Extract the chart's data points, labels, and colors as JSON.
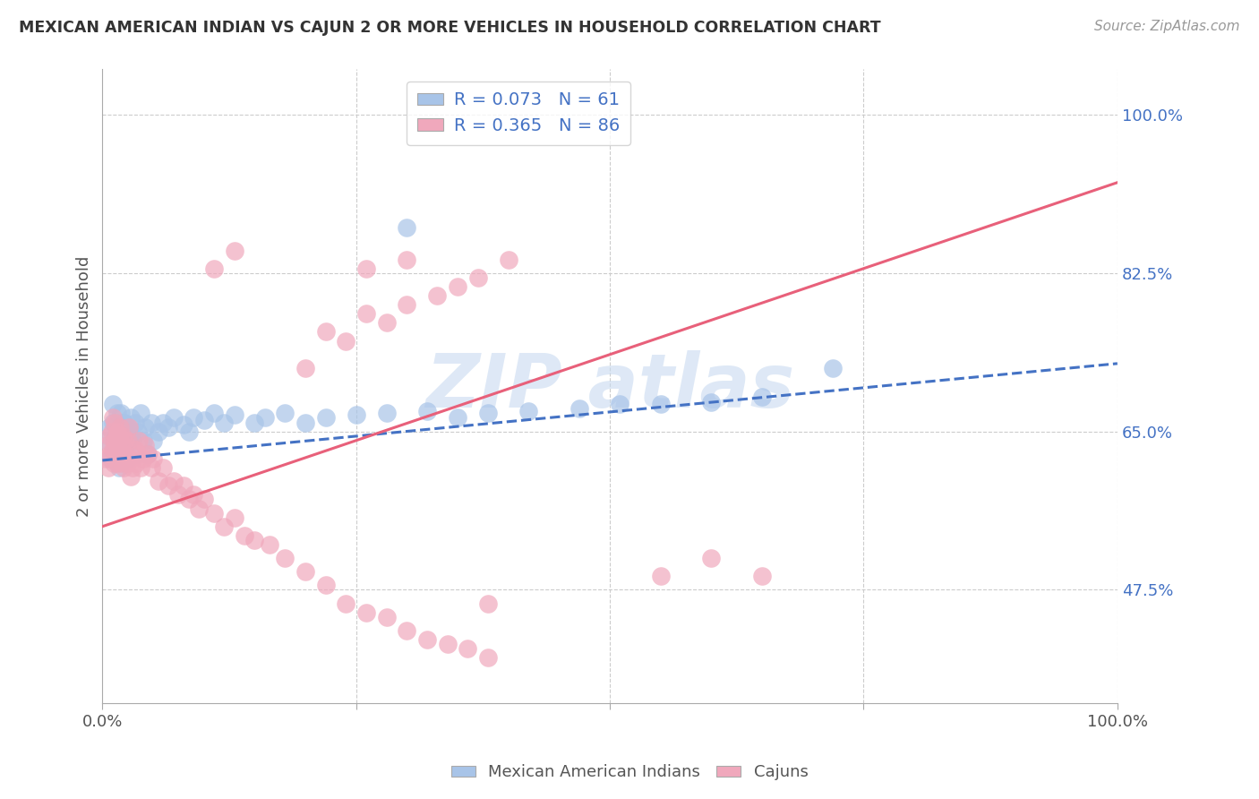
{
  "title": "MEXICAN AMERICAN INDIAN VS CAJUN 2 OR MORE VEHICLES IN HOUSEHOLD CORRELATION CHART",
  "source": "Source: ZipAtlas.com",
  "ylabel": "2 or more Vehicles in Household",
  "legend_label1": "Mexican American Indians",
  "legend_label2": "Cajuns",
  "R1": 0.073,
  "N1": 61,
  "R2": 0.365,
  "N2": 86,
  "color1": "#a8c4e8",
  "color2": "#f0a8bc",
  "line_color1": "#4472c4",
  "line_color2": "#e8607a",
  "watermark_color": "#c8daf0",
  "xlim": [
    0.0,
    1.0
  ],
  "ylim": [
    0.35,
    1.05
  ],
  "blue_line_start_y": 0.618,
  "blue_line_end_y": 0.725,
  "pink_line_start_y": 0.545,
  "pink_line_end_y": 0.925,
  "blue_x": [
    0.005,
    0.007,
    0.008,
    0.01,
    0.01,
    0.012,
    0.013,
    0.014,
    0.015,
    0.016,
    0.017,
    0.018,
    0.018,
    0.02,
    0.02,
    0.022,
    0.022,
    0.024,
    0.025,
    0.025,
    0.028,
    0.028,
    0.03,
    0.032,
    0.033,
    0.035,
    0.038,
    0.04,
    0.042,
    0.045,
    0.048,
    0.05,
    0.055,
    0.06,
    0.065,
    0.07,
    0.08,
    0.085,
    0.09,
    0.1,
    0.11,
    0.12,
    0.13,
    0.15,
    0.16,
    0.18,
    0.2,
    0.22,
    0.25,
    0.28,
    0.32,
    0.35,
    0.38,
    0.42,
    0.47,
    0.51,
    0.55,
    0.6,
    0.65,
    0.72,
    0.3
  ],
  "blue_y": [
    0.64,
    0.655,
    0.62,
    0.66,
    0.68,
    0.625,
    0.645,
    0.63,
    0.67,
    0.61,
    0.655,
    0.64,
    0.67,
    0.625,
    0.66,
    0.635,
    0.66,
    0.65,
    0.62,
    0.655,
    0.645,
    0.665,
    0.64,
    0.66,
    0.625,
    0.65,
    0.67,
    0.64,
    0.655,
    0.625,
    0.66,
    0.64,
    0.65,
    0.66,
    0.655,
    0.665,
    0.658,
    0.65,
    0.665,
    0.662,
    0.67,
    0.66,
    0.668,
    0.66,
    0.665,
    0.67,
    0.66,
    0.665,
    0.668,
    0.67,
    0.672,
    0.665,
    0.67,
    0.672,
    0.675,
    0.68,
    0.68,
    0.682,
    0.688,
    0.72,
    0.875
  ],
  "pink_x": [
    0.003,
    0.005,
    0.006,
    0.007,
    0.008,
    0.009,
    0.01,
    0.01,
    0.011,
    0.012,
    0.012,
    0.013,
    0.014,
    0.015,
    0.015,
    0.016,
    0.017,
    0.017,
    0.018,
    0.019,
    0.02,
    0.02,
    0.021,
    0.022,
    0.023,
    0.024,
    0.025,
    0.026,
    0.027,
    0.028,
    0.03,
    0.032,
    0.033,
    0.035,
    0.036,
    0.038,
    0.04,
    0.042,
    0.045,
    0.048,
    0.05,
    0.055,
    0.06,
    0.065,
    0.07,
    0.075,
    0.08,
    0.085,
    0.09,
    0.095,
    0.1,
    0.11,
    0.12,
    0.13,
    0.14,
    0.15,
    0.165,
    0.18,
    0.2,
    0.22,
    0.24,
    0.26,
    0.28,
    0.3,
    0.32,
    0.34,
    0.36,
    0.38,
    0.2,
    0.22,
    0.24,
    0.26,
    0.28,
    0.3,
    0.33,
    0.35,
    0.37,
    0.4,
    0.11,
    0.13,
    0.55,
    0.6,
    0.65,
    0.3,
    0.26,
    0.38
  ],
  "pink_y": [
    0.62,
    0.635,
    0.61,
    0.645,
    0.625,
    0.65,
    0.63,
    0.665,
    0.615,
    0.64,
    0.66,
    0.625,
    0.645,
    0.615,
    0.65,
    0.63,
    0.62,
    0.655,
    0.638,
    0.615,
    0.625,
    0.645,
    0.61,
    0.64,
    0.625,
    0.615,
    0.64,
    0.655,
    0.62,
    0.6,
    0.61,
    0.63,
    0.615,
    0.625,
    0.64,
    0.61,
    0.62,
    0.635,
    0.625,
    0.61,
    0.62,
    0.595,
    0.61,
    0.59,
    0.595,
    0.58,
    0.59,
    0.575,
    0.58,
    0.565,
    0.575,
    0.56,
    0.545,
    0.555,
    0.535,
    0.53,
    0.525,
    0.51,
    0.495,
    0.48,
    0.46,
    0.45,
    0.445,
    0.43,
    0.42,
    0.415,
    0.41,
    0.4,
    0.72,
    0.76,
    0.75,
    0.78,
    0.77,
    0.79,
    0.8,
    0.81,
    0.82,
    0.84,
    0.83,
    0.85,
    0.49,
    0.51,
    0.49,
    0.84,
    0.83,
    0.46
  ]
}
